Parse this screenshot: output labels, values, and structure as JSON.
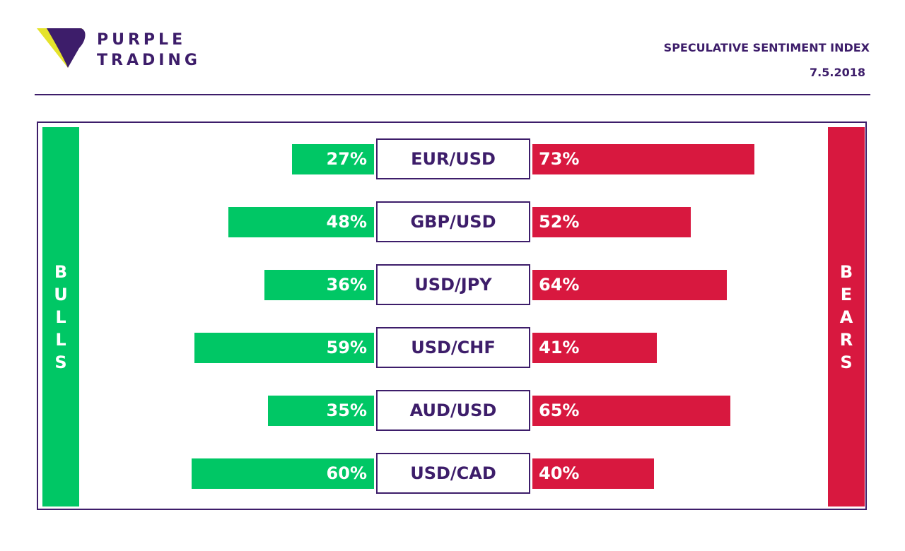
{
  "brand": {
    "line1": "PURPLE",
    "line2": "TRADING"
  },
  "header": {
    "title": "SPECULATIVE SENTIMENT INDEX",
    "date": "7.5.2018"
  },
  "labels": {
    "bulls": "BULLS",
    "bears": "BEARS"
  },
  "colors": {
    "purple": "#3d1d6a",
    "bull_green": "#00c765",
    "bear_red": "#d8183f",
    "logo_yellow": "#e5e32b"
  },
  "chart_data": {
    "type": "bar",
    "categories": [
      "EUR/USD",
      "GBP/USD",
      "USD/JPY",
      "USD/CHF",
      "AUD/USD",
      "USD/CAD"
    ],
    "series": [
      {
        "name": "BULLS",
        "values": [
          27,
          48,
          36,
          59,
          35,
          60
        ]
      },
      {
        "name": "BEARS",
        "values": [
          73,
          52,
          64,
          41,
          65,
          40
        ]
      }
    ],
    "value_suffix": "%",
    "xlim": [
      0,
      100
    ]
  }
}
